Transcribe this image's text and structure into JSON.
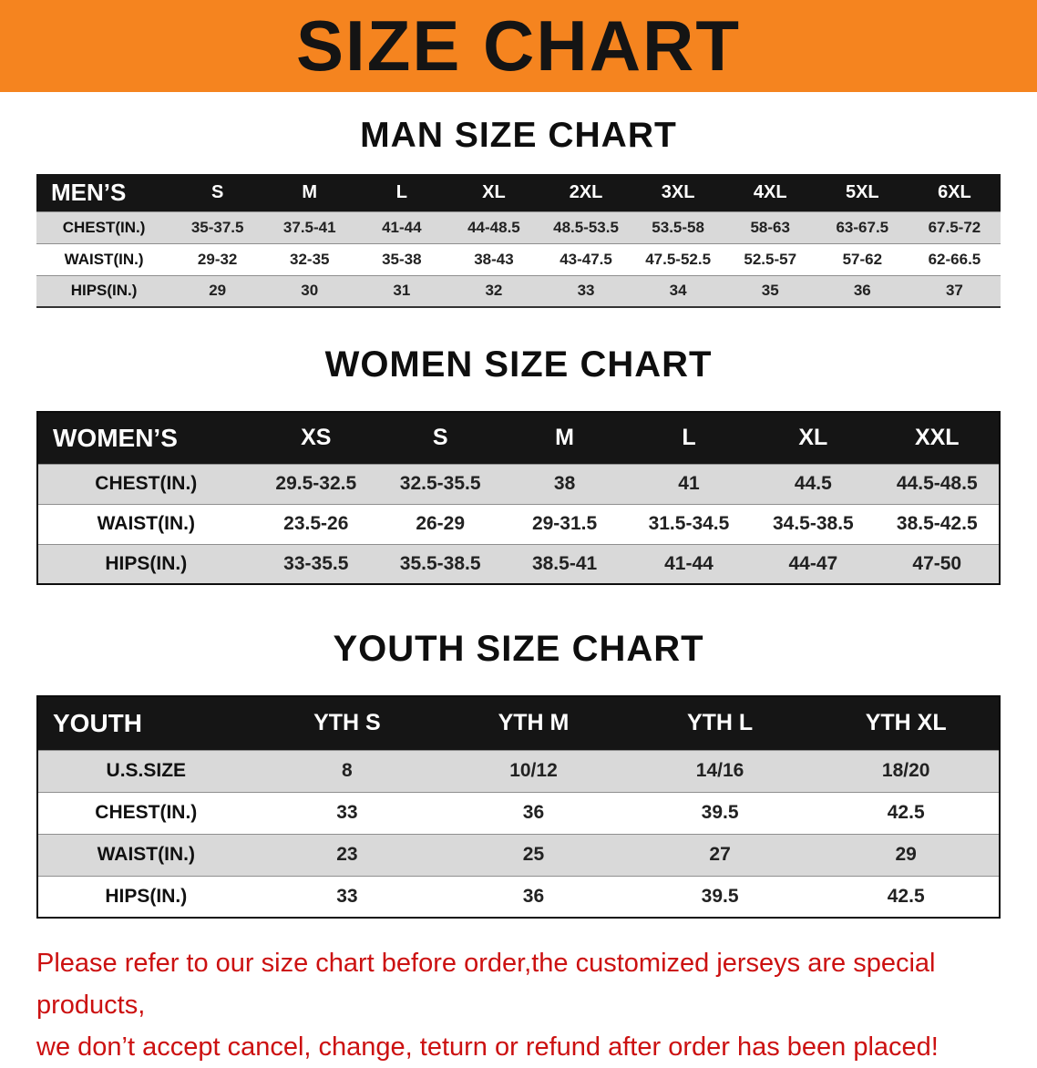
{
  "banner": {
    "title": "SIZE CHART",
    "bg_color": "#f5841f",
    "text_color": "#141414"
  },
  "sections": [
    {
      "id": "men",
      "heading": "MAN SIZE CHART",
      "table": {
        "header": [
          "MEN’S",
          "S",
          "M",
          "L",
          "XL",
          "2XL",
          "3XL",
          "4XL",
          "5XL",
          "6XL"
        ],
        "rows": [
          {
            "label": "CHEST(IN.)",
            "values": [
              "35-37.5",
              "37.5-41",
              "41-44",
              "44-48.5",
              "48.5-53.5",
              "53.5-58",
              "58-63",
              "63-67.5",
              "67.5-72"
            ]
          },
          {
            "label": "WAIST(IN.)",
            "values": [
              "29-32",
              "32-35",
              "35-38",
              "38-43",
              "43-47.5",
              "47.5-52.5",
              "52.5-57",
              "57-62",
              "62-66.5"
            ]
          },
          {
            "label": "HIPS(IN.)",
            "values": [
              "29",
              "30",
              "31",
              "32",
              "33",
              "34",
              "35",
              "36",
              "37"
            ]
          }
        ]
      }
    },
    {
      "id": "women",
      "heading": "WOMEN SIZE CHART",
      "table": {
        "header": [
          "WOMEN’S",
          "XS",
          "S",
          "M",
          "L",
          "XL",
          "XXL"
        ],
        "rows": [
          {
            "label": "CHEST(IN.)",
            "values": [
              "29.5-32.5",
              "32.5-35.5",
              "38",
              "41",
              "44.5",
              "44.5-48.5"
            ]
          },
          {
            "label": "WAIST(IN.)",
            "values": [
              "23.5-26",
              "26-29",
              "29-31.5",
              "31.5-34.5",
              "34.5-38.5",
              "38.5-42.5"
            ]
          },
          {
            "label": "HIPS(IN.)",
            "values": [
              "33-35.5",
              "35.5-38.5",
              "38.5-41",
              "41-44",
              "44-47",
              "47-50"
            ]
          }
        ]
      }
    },
    {
      "id": "youth",
      "heading": "YOUTH SIZE CHART",
      "table": {
        "header": [
          "YOUTH",
          "YTH S",
          "YTH M",
          "YTH L",
          "YTH XL"
        ],
        "rows": [
          {
            "label": "U.S.SIZE",
            "values": [
              "8",
              "10/12",
              "14/16",
              "18/20"
            ]
          },
          {
            "label": "CHEST(IN.)",
            "values": [
              "33",
              "36",
              "39.5",
              "42.5"
            ]
          },
          {
            "label": "WAIST(IN.)",
            "values": [
              "23",
              "25",
              "27",
              "29"
            ]
          },
          {
            "label": "HIPS(IN.)",
            "values": [
              "33",
              "36",
              "39.5",
              "42.5"
            ]
          }
        ]
      }
    }
  ],
  "footer": {
    "line1": "Please refer to our size chart before order,the customized jerseys are special products,",
    "line2": "we don’t accept cancel, change, teturn or refund after order has been placed!",
    "text_color": "#cc1111"
  }
}
